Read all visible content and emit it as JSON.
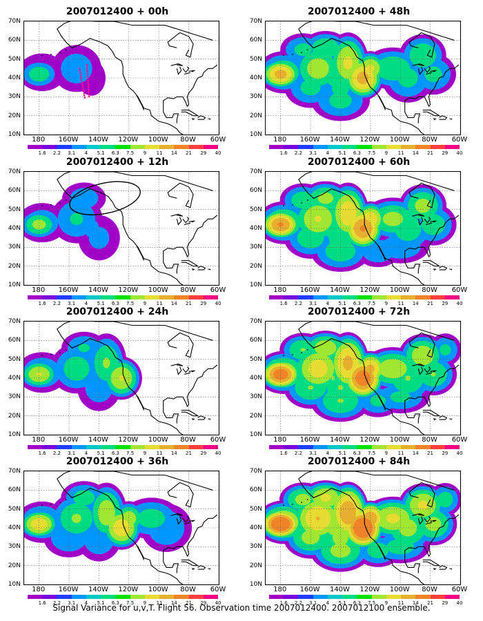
{
  "footer_caption": "Signal Variance for u,v,T. Flight 56. Observation time 2007012400. 2007012100 ensemble.",
  "panels": [
    {
      "title": "2007012400 + 00h",
      "intensity": 0
    },
    {
      "title": "2007012400 + 48h",
      "intensity": 4
    },
    {
      "title": "2007012400 + 12h",
      "intensity": 1
    },
    {
      "title": "2007012400 + 60h",
      "intensity": 5
    },
    {
      "title": "2007012400 + 24h",
      "intensity": 2
    },
    {
      "title": "2007012400 + 72h",
      "intensity": 6
    },
    {
      "title": "2007012400 + 36h",
      "intensity": 3
    },
    {
      "title": "2007012400 + 84h",
      "intensity": 7
    }
  ],
  "lat_labels": [
    "70N",
    "60N",
    "50N",
    "40N",
    "30N",
    "20N",
    "10N"
  ],
  "lon_labels": [
    "180",
    "160W",
    "140W",
    "120W",
    "100W",
    "80W",
    "60W"
  ],
  "colorbar": {
    "labels": [
      "1.6",
      "2.2",
      "3.1",
      "4",
      "5.1",
      "6.3",
      "7.5",
      "9",
      "11",
      "14",
      "21",
      "29",
      "40"
    ],
    "colors": [
      "#a000c8",
      "#7800dc",
      "#1e3cff",
      "#0096ff",
      "#00c8c8",
      "#00dc82",
      "#00e100",
      "#a0e632",
      "#e6dc32",
      "#e6af2d",
      "#f08228",
      "#fa3c3c",
      "#f00082"
    ]
  },
  "flight_track_color": "#ff1493",
  "flight_ellipse_color": "#000000"
}
